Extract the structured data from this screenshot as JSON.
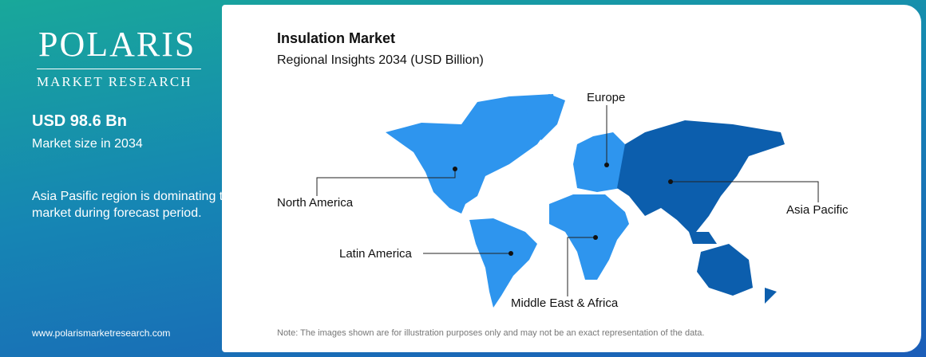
{
  "brand": {
    "name": "POLARIS",
    "tagline": "MARKET RESEARCH"
  },
  "sidebar": {
    "headline": "USD 98.6 Bn",
    "headline_caption": "Market size in 2034",
    "insight": "Asia Pasific region is dominating the market during forecast period.",
    "website": "www.polarismarketresearch.com"
  },
  "main": {
    "title": "Insulation Market",
    "subtitle": "Regional Insights 2034 (USD Billion)",
    "regions": [
      "Europe",
      "North America",
      "Asia Pacific",
      "Latin America",
      "Middle East & Africa"
    ],
    "note": "Note: The images shown are for illustration purposes only and may not be an exact representation of the data."
  }
}
